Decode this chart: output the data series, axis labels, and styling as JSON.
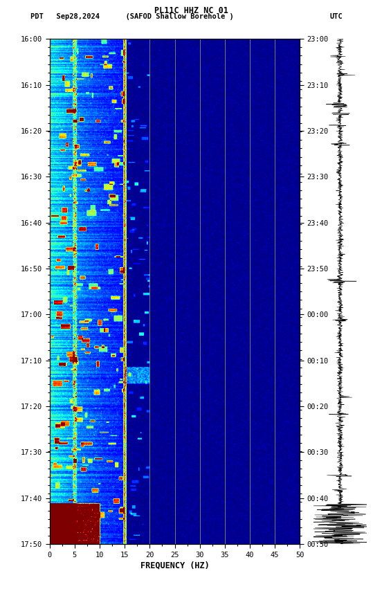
{
  "title_line1": "PL11C HHZ NC 01",
  "title_line2_left": "PDT   Sep28,2024      (SAFOD Shallow Borehole )",
  "title_line2_right": "UTC",
  "xlabel": "FREQUENCY (HZ)",
  "freq_min": 0,
  "freq_max": 50,
  "freq_ticks": [
    0,
    5,
    10,
    15,
    20,
    25,
    30,
    35,
    40,
    45,
    50
  ],
  "time_labels_left": [
    "16:00",
    "16:10",
    "16:20",
    "16:30",
    "16:40",
    "16:50",
    "17:00",
    "17:10",
    "17:20",
    "17:30",
    "17:40",
    "17:50"
  ],
  "time_labels_right": [
    "23:00",
    "23:10",
    "23:20",
    "23:30",
    "23:40",
    "23:50",
    "00:00",
    "00:10",
    "00:20",
    "00:30",
    "00:40",
    "00:50"
  ],
  "n_time": 600,
  "n_freq": 500,
  "vertical_lines_freq": [
    15,
    20,
    25,
    30,
    35,
    40,
    45
  ],
  "background_color": "#ffffff",
  "colormap": "jet",
  "fig_width": 5.52,
  "fig_height": 8.64,
  "dpi": 100,
  "vmin": 0,
  "vmax": 8
}
